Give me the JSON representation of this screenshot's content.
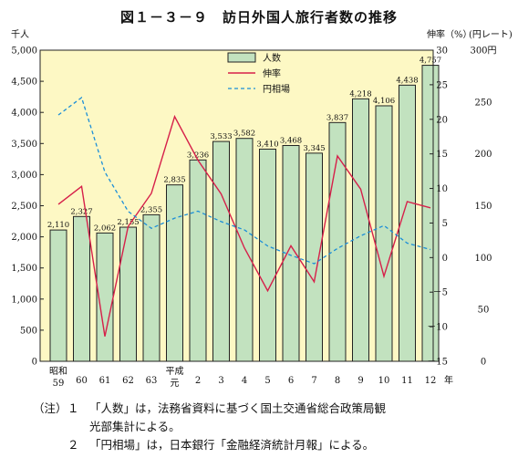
{
  "title": "図１－３－９　訪日外国人旅行者数の推移",
  "chart_data": {
    "type": "bar",
    "title": "図１－３－９　訪日外国人旅行者数の推移",
    "left_axis_unit": "千人",
    "right_axis_unit_rate": "伸率（%）",
    "right_axis_unit_yen": "(円レート)",
    "x_suffix": "年",
    "categories": [
      {
        "era": "昭和",
        "year": "59"
      },
      {
        "era": "",
        "year": "60"
      },
      {
        "era": "",
        "year": "61"
      },
      {
        "era": "",
        "year": "62"
      },
      {
        "era": "",
        "year": "63"
      },
      {
        "era": "平成",
        "year": "元"
      },
      {
        "era": "",
        "year": "2"
      },
      {
        "era": "",
        "year": "3"
      },
      {
        "era": "",
        "year": "4"
      },
      {
        "era": "",
        "year": "5"
      },
      {
        "era": "",
        "year": "6"
      },
      {
        "era": "",
        "year": "7"
      },
      {
        "era": "",
        "year": "8"
      },
      {
        "era": "",
        "year": "9"
      },
      {
        "era": "",
        "year": "10"
      },
      {
        "era": "",
        "year": "11"
      },
      {
        "era": "",
        "year": "12"
      }
    ],
    "series": [
      {
        "name": "人数",
        "type": "bar",
        "values": [
          2110,
          2327,
          2062,
          2155,
          2355,
          2835,
          3236,
          3533,
          3582,
          3410,
          3468,
          3345,
          3837,
          4218,
          4106,
          4438,
          4757
        ],
        "labels": [
          "2,110",
          "2,327",
          "2,062",
          "2,155",
          "2,355",
          "2,835",
          "3,236",
          "3,533",
          "3,582",
          "3,410",
          "3,468",
          "3,345",
          "3,837",
          "4,218",
          "4,106",
          "4,438",
          "4,757"
        ],
        "color": "#c2e2bf"
      },
      {
        "name": "伸率",
        "type": "line",
        "values": [
          7.7,
          10.3,
          -11.4,
          4.5,
          9.3,
          20.4,
          14.1,
          9.2,
          1.4,
          -4.8,
          1.7,
          -3.5,
          14.7,
          9.9,
          -2.7,
          8.1,
          7.2
        ],
        "color": "#d6204a"
      },
      {
        "name": "円相場",
        "type": "line",
        "values": [
          237.5,
          254.3,
          182.5,
          144.6,
          128.2,
          138.0,
          144.8,
          134.7,
          126.7,
          111.2,
          102.2,
          94.1,
          108.8,
          121.0,
          130.9,
          113.9,
          107.8
        ],
        "color": "#1b8ed8"
      }
    ],
    "y_left": {
      "min": 0,
      "max": 5000,
      "ticks": [
        "0",
        "500",
        "1,000",
        "1,500",
        "2,000",
        "2,500",
        "3,000",
        "3,500",
        "4,000",
        "4,500",
        "5,000"
      ]
    },
    "y_rate": {
      "min": -15,
      "max": 30,
      "ticks": [
        "－15",
        "－10",
        "－5",
        "0",
        "5",
        "10",
        "15",
        "20",
        "25",
        "30"
      ]
    },
    "y_yen": {
      "min": 0,
      "max": 300,
      "ticks": [
        "0",
        "50",
        "100",
        "150",
        "200",
        "250",
        "300円"
      ]
    },
    "legend_position": "top-right",
    "grid": false,
    "plot_background": "#fdf8c4"
  },
  "notes": [
    {
      "label": "（注）",
      "num": "１",
      "lines": [
        "「人数」は，法務省資料に基づく国土交通省総合政策局観",
        "光部集計による。"
      ]
    },
    {
      "label": "",
      "num": "２",
      "lines": [
        "「円相場」は，日本銀行「金融経済統計月報」による。"
      ]
    }
  ]
}
